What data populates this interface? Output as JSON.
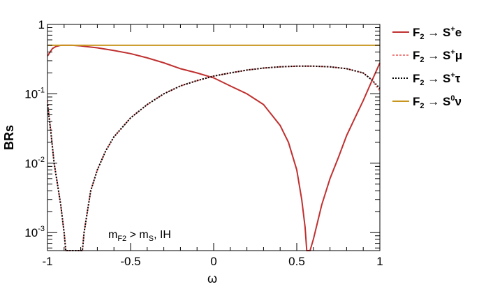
{
  "chart_data": {
    "type": "line",
    "xlabel": "ω",
    "ylabel": "BRs",
    "xlim": [
      -1,
      1
    ],
    "ylim": [
      0.00055,
      1
    ],
    "y_scale": "log",
    "grid": false,
    "legend_position": "right",
    "x_ticks": [
      "-1",
      "-0.5",
      "0",
      "0.5",
      "1"
    ],
    "y_ticks": [
      {
        "value": 1,
        "base": "1",
        "exp": ""
      },
      {
        "value": 0.1,
        "base": "10",
        "exp": "-1"
      },
      {
        "value": 0.01,
        "base": "10",
        "exp": "-2"
      },
      {
        "value": 0.001,
        "base": "10",
        "exp": "-3"
      }
    ],
    "annotation": {
      "m1": "m",
      "s1": "F2",
      "op": " > m",
      "s2": "S",
      "tail": ", IH"
    },
    "series": [
      {
        "name": "S+e",
        "legend": {
          "lhs": "F",
          "lhs_sub": "2",
          "arrow": " → ",
          "rhs": "S",
          "rhs_sup": "+",
          "tail": "e"
        },
        "color": "#c03030",
        "dash": "",
        "x": [
          -1.0,
          -0.97,
          -0.95,
          -0.92,
          -0.9,
          -0.85,
          -0.8,
          -0.7,
          -0.6,
          -0.5,
          -0.4,
          -0.3,
          -0.2,
          -0.1,
          0.0,
          0.1,
          0.2,
          0.3,
          0.4,
          0.45,
          0.5,
          0.53,
          0.55,
          0.56,
          0.58,
          0.6,
          0.65,
          0.7,
          0.75,
          0.8,
          0.85,
          0.9,
          0.95,
          1.0
        ],
        "y": [
          0.35,
          0.45,
          0.48,
          0.5,
          0.5,
          0.5,
          0.49,
          0.46,
          0.42,
          0.38,
          0.33,
          0.28,
          0.23,
          0.2,
          0.17,
          0.13,
          0.1,
          0.07,
          0.035,
          0.02,
          0.008,
          0.003,
          0.0012,
          0.00055,
          0.00055,
          0.0008,
          0.0025,
          0.006,
          0.012,
          0.025,
          0.045,
          0.08,
          0.15,
          0.28
        ]
      },
      {
        "name": "S+μ",
        "legend": {
          "lhs": "F",
          "lhs_sub": "2",
          "arrow": " → ",
          "rhs": "S",
          "rhs_sup": "+",
          "tail": "μ"
        },
        "color": "#f08080",
        "dash": "3,2",
        "x": [
          -1.0,
          -0.98,
          -0.96,
          -0.94,
          -0.92,
          -0.9,
          -0.89,
          -0.88,
          -0.86,
          -0.84,
          -0.82,
          -0.8,
          -0.79,
          -0.78,
          -0.76,
          -0.74,
          -0.7,
          -0.65,
          -0.6,
          -0.5,
          -0.4,
          -0.3,
          -0.2,
          -0.1,
          0.0,
          0.1,
          0.2,
          0.3,
          0.4,
          0.5,
          0.6,
          0.7,
          0.8,
          0.9,
          0.95,
          1.0
        ],
        "y": [
          0.08,
          0.03,
          0.01,
          0.005,
          0.0025,
          0.001,
          0.00055,
          0.00055,
          0.00055,
          0.00055,
          0.00055,
          0.00055,
          0.00055,
          0.001,
          0.002,
          0.004,
          0.008,
          0.015,
          0.024,
          0.045,
          0.07,
          0.1,
          0.13,
          0.155,
          0.18,
          0.2,
          0.22,
          0.235,
          0.245,
          0.25,
          0.25,
          0.245,
          0.23,
          0.2,
          0.16,
          0.11
        ]
      },
      {
        "name": "S+τ",
        "legend": {
          "lhs": "F",
          "lhs_sub": "2",
          "arrow": " → ",
          "rhs": "S",
          "rhs_sup": "+",
          "tail": "τ"
        },
        "color": "#000000",
        "dash": "2,2",
        "x": [
          -1.0,
          -0.98,
          -0.96,
          -0.94,
          -0.92,
          -0.9,
          -0.89,
          -0.88,
          -0.86,
          -0.84,
          -0.82,
          -0.8,
          -0.79,
          -0.78,
          -0.76,
          -0.74,
          -0.7,
          -0.65,
          -0.6,
          -0.5,
          -0.4,
          -0.3,
          -0.2,
          -0.1,
          0.0,
          0.1,
          0.2,
          0.3,
          0.4,
          0.5,
          0.6,
          0.7,
          0.8,
          0.9,
          0.95,
          1.0
        ],
        "y": [
          0.07,
          0.028,
          0.01,
          0.005,
          0.0025,
          0.001,
          0.00055,
          0.00055,
          0.00055,
          0.00055,
          0.00055,
          0.00055,
          0.00055,
          0.001,
          0.002,
          0.004,
          0.008,
          0.015,
          0.024,
          0.045,
          0.07,
          0.1,
          0.13,
          0.155,
          0.18,
          0.2,
          0.22,
          0.235,
          0.245,
          0.25,
          0.25,
          0.245,
          0.23,
          0.2,
          0.16,
          0.12
        ]
      },
      {
        "name": "S0ν",
        "legend": {
          "lhs": "F",
          "lhs_sub": "2",
          "arrow": " → ",
          "rhs": "S",
          "rhs_sup": "0",
          "tail": "ν"
        },
        "color": "#c8961e",
        "dash": "",
        "x": [
          -1.0,
          1.0
        ],
        "y": [
          0.5,
          0.5
        ]
      }
    ]
  }
}
